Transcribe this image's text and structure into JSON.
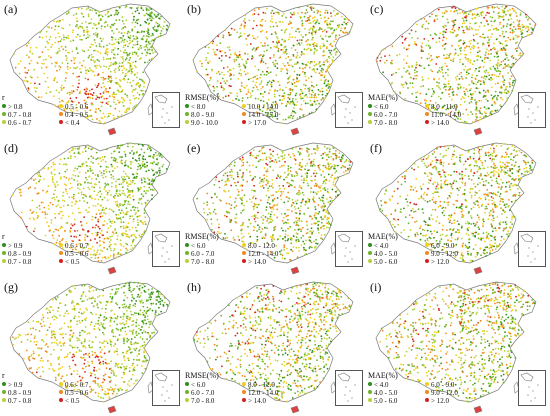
{
  "panels": [
    {
      "label": "(a)",
      "metric": "r",
      "legend_title": "r",
      "legend": [
        {
          "text": "> 0.8",
          "color": "#2f8f1e"
        },
        {
          "text": "0.5 - 0.6",
          "color": "#f0d020"
        },
        {
          "text": "0.7 - 0.8",
          "color": "#6cb52a"
        },
        {
          "text": "0.4 - 0.5",
          "color": "#f08a20"
        },
        {
          "text": "0.6 - 0.7",
          "color": "#b4d23c"
        },
        {
          "text": "< 0.4",
          "color": "#d42020"
        }
      ]
    },
    {
      "label": "(b)",
      "metric": "rmse",
      "legend_title": "RMSE(%)",
      "legend": [
        {
          "text": "< 8.0",
          "color": "#2f8f1e"
        },
        {
          "text": "10.0 - 14.0",
          "color": "#f0d020"
        },
        {
          "text": "8.0 - 9.0",
          "color": "#6cb52a"
        },
        {
          "text": "14.0 - 17.0",
          "color": "#f08a20"
        },
        {
          "text": "9.0 - 10.0",
          "color": "#b4d23c"
        },
        {
          "text": "> 17.0",
          "color": "#d42020"
        }
      ]
    },
    {
      "label": "(c)",
      "metric": "mae",
      "legend_title": "MAE(%)",
      "legend": [
        {
          "text": "< 6.0",
          "color": "#2f8f1e"
        },
        {
          "text": "8.0 - 11.0",
          "color": "#f0d020"
        },
        {
          "text": "6.0 - 7.0",
          "color": "#6cb52a"
        },
        {
          "text": "11.0 - 14.0",
          "color": "#f08a20"
        },
        {
          "text": "7.0 - 8.0",
          "color": "#b4d23c"
        },
        {
          "text": "> 14.0",
          "color": "#d42020"
        }
      ]
    },
    {
      "label": "(d)",
      "metric": "r",
      "legend_title": "r",
      "legend": [
        {
          "text": "> 0.9",
          "color": "#2f8f1e"
        },
        {
          "text": "0.6 - 0.7",
          "color": "#f0d020"
        },
        {
          "text": "0.8 - 0.9",
          "color": "#6cb52a"
        },
        {
          "text": "0.5 - 0.6",
          "color": "#f08a20"
        },
        {
          "text": "0.7 - 0.8",
          "color": "#b4d23c"
        },
        {
          "text": "< 0.5",
          "color": "#d42020"
        }
      ]
    },
    {
      "label": "(e)",
      "metric": "rmse",
      "legend_title": "RMSE(%)",
      "legend": [
        {
          "text": "< 6.0",
          "color": "#2f8f1e"
        },
        {
          "text": "8.0 - 12.0",
          "color": "#f0d020"
        },
        {
          "text": "6.0 - 7.0",
          "color": "#6cb52a"
        },
        {
          "text": "12.0 - 14.0",
          "color": "#f08a20"
        },
        {
          "text": "7.0 - 8.0",
          "color": "#b4d23c"
        },
        {
          "text": "> 14.0",
          "color": "#d42020"
        }
      ]
    },
    {
      "label": "(f)",
      "metric": "mae",
      "legend_title": "MAE(%)",
      "legend": [
        {
          "text": "< 4.0",
          "color": "#2f8f1e"
        },
        {
          "text": "6.0 - 9.0",
          "color": "#f0d020"
        },
        {
          "text": "4.0 - 5.0",
          "color": "#6cb52a"
        },
        {
          "text": "9.0 - 12.0",
          "color": "#f08a20"
        },
        {
          "text": "5.0 - 6.0",
          "color": "#b4d23c"
        },
        {
          "text": "> 12.0",
          "color": "#d42020"
        }
      ]
    },
    {
      "label": "(g)",
      "metric": "r",
      "legend_title": "r",
      "legend": [
        {
          "text": "> 0.9",
          "color": "#2f8f1e"
        },
        {
          "text": "0.6 - 0.7",
          "color": "#f0d020"
        },
        {
          "text": "0.8 - 0.9",
          "color": "#6cb52a"
        },
        {
          "text": "0.5 - 0.6",
          "color": "#f08a20"
        },
        {
          "text": "0.7 - 0.8",
          "color": "#b4d23c"
        },
        {
          "text": "< 0.5",
          "color": "#d42020"
        }
      ]
    },
    {
      "label": "(h)",
      "metric": "rmse",
      "legend_title": "RMSE(%)",
      "legend": [
        {
          "text": "< 6.0",
          "color": "#2f8f1e"
        },
        {
          "text": "8.0 - 12.0",
          "color": "#f0d020"
        },
        {
          "text": "6.0 - 7.0",
          "color": "#6cb52a"
        },
        {
          "text": "12.0 - 14.0",
          "color": "#f08a20"
        },
        {
          "text": "7.0 - 8.0",
          "color": "#b4d23c"
        },
        {
          "text": "> 14.0",
          "color": "#d42020"
        }
      ]
    },
    {
      "label": "(i)",
      "metric": "mae",
      "legend_title": "MAE(%)",
      "legend": [
        {
          "text": "< 4.0",
          "color": "#2f8f1e"
        },
        {
          "text": "6.0 - 9.0",
          "color": "#f0d020"
        },
        {
          "text": "4.0 - 5.0",
          "color": "#6cb52a"
        },
        {
          "text": "9.0 - 12.0",
          "color": "#f08a20"
        },
        {
          "text": "5.0 - 6.0",
          "color": "#b4d23c"
        },
        {
          "text": "> 12.0",
          "color": "#d42020"
        }
      ]
    }
  ],
  "colors": {
    "outline": "#7a7a7a",
    "inset_border": "#555555"
  }
}
